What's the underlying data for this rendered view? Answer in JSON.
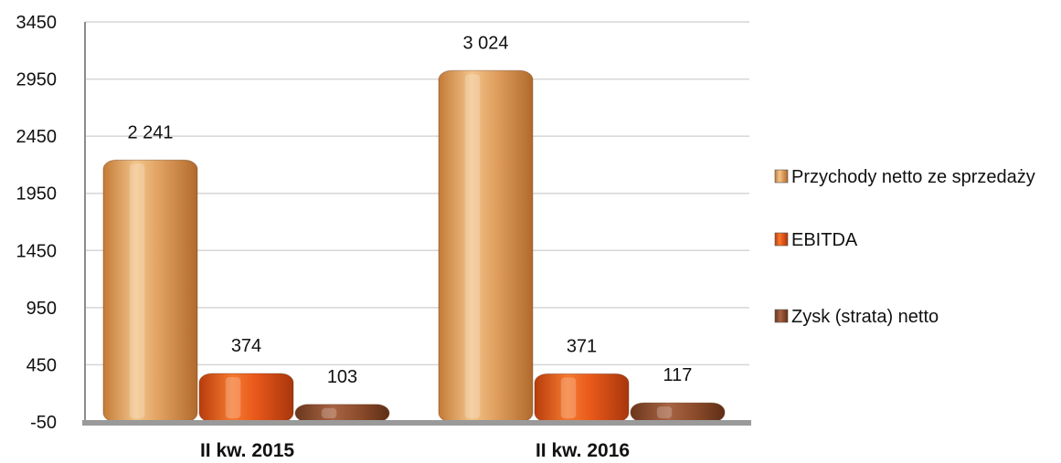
{
  "chart_data": {
    "type": "bar",
    "categories": [
      "II kw. 2015",
      "II kw. 2016"
    ],
    "series": [
      {
        "name": "Przychody netto ze sprzedaży",
        "values": [
          2241,
          3024
        ],
        "labels": [
          "2 241",
          "3 024"
        ],
        "color": "#e0a060"
      },
      {
        "name": "EBITDA",
        "values": [
          374,
          371
        ],
        "labels": [
          "374",
          "371"
        ],
        "color": "#e8581a"
      },
      {
        "name": "Zysk (strata) netto",
        "values": [
          103,
          117
        ],
        "labels": [
          "103",
          "117"
        ],
        "color": "#8a4a2a"
      }
    ],
    "yticks": [
      "3450",
      "2950",
      "2450",
      "1950",
      "1450",
      "950",
      "450",
      "-50"
    ],
    "ylim": [
      -50,
      3450
    ],
    "grid": true,
    "legend": "right",
    "title": "",
    "xlabel": "",
    "ylabel": ""
  }
}
